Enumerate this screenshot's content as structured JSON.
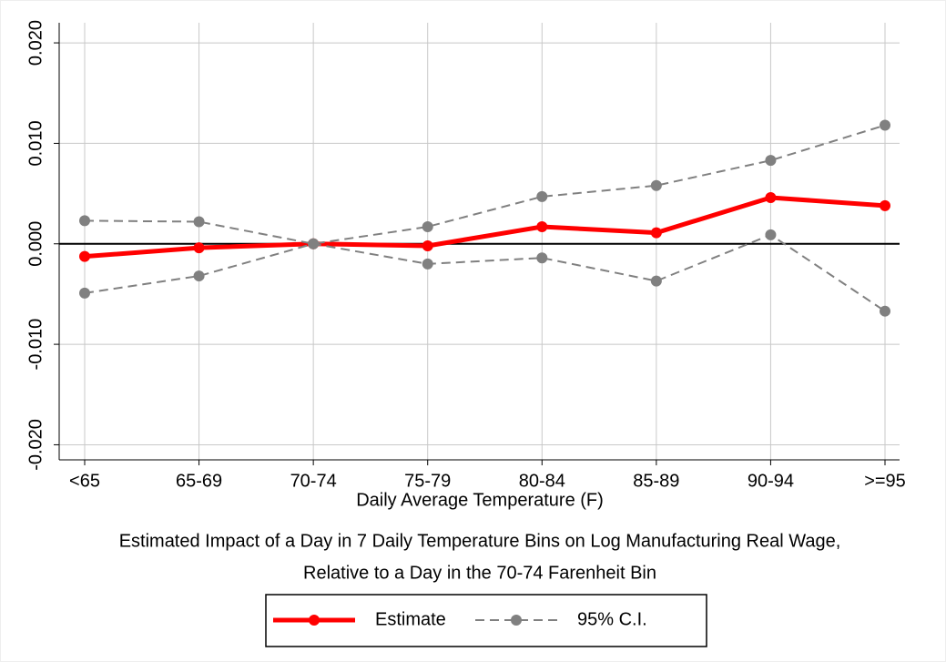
{
  "chart_data": {
    "type": "line",
    "x_label": "Daily Average Temperature (F)",
    "notes": [
      "Estimated Impact of a Day in 7 Daily Temperature Bins on Log Manufacturing Real Wage,",
      "Relative to a Day in the 70-74 Farenheit Bin"
    ],
    "categories": [
      "<65",
      "65-69",
      "70-74",
      "75-79",
      "80-84",
      "85-89",
      "90-94",
      ">=95"
    ],
    "series": [
      {
        "name": "Estimate",
        "color": "#ff0000",
        "values": [
          -0.00126,
          -0.0004,
          0,
          -0.0002,
          0.0017,
          0.0011,
          0.0046,
          0.0038
        ]
      },
      {
        "name": "95% C.I.",
        "color": "#808080",
        "dashed": true,
        "upper": [
          0.0023,
          0.0022,
          0,
          0.0017,
          0.0047,
          0.0058,
          0.0083,
          0.0118
        ],
        "lower": [
          -0.0049,
          -0.0032,
          0,
          -0.002,
          -0.0014,
          -0.0037,
          0.0009,
          -0.0067
        ]
      }
    ],
    "ylim": [
      -0.0215,
      0.022
    ],
    "yticks": [
      {
        "value": 0.02,
        "label": "0.020"
      },
      {
        "value": 0.01,
        "label": "0.010"
      },
      {
        "value": 0,
        "label": "0.000"
      },
      {
        "value": -0.01,
        "label": "-0.010"
      },
      {
        "value": -0.02,
        "label": "-0.020"
      }
    ],
    "reference_line": 0,
    "grid": true
  }
}
